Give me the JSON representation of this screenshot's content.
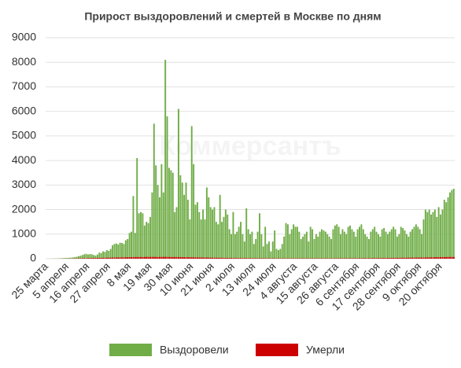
{
  "chart_data": {
    "type": "bar",
    "title": "Прирост выздоровлений и смертей в Москве по дням",
    "watermark": "Коммерсантъ",
    "categories": [
      "25 марта",
      null,
      null,
      null,
      null,
      null,
      null,
      null,
      null,
      null,
      null,
      "5 апреля",
      null,
      null,
      null,
      null,
      null,
      null,
      null,
      null,
      null,
      null,
      "16 апреля",
      null,
      null,
      null,
      null,
      null,
      null,
      null,
      null,
      null,
      null,
      "27 апреля",
      null,
      null,
      null,
      null,
      null,
      null,
      null,
      null,
      null,
      null,
      "8 мая",
      null,
      null,
      null,
      null,
      null,
      null,
      null,
      null,
      null,
      null,
      "19 мая",
      null,
      null,
      null,
      null,
      null,
      null,
      null,
      null,
      null,
      null,
      "30 мая",
      null,
      null,
      null,
      null,
      null,
      null,
      null,
      null,
      null,
      null,
      "10 июня",
      null,
      null,
      null,
      null,
      null,
      null,
      null,
      null,
      null,
      null,
      "21 июня",
      null,
      null,
      null,
      null,
      null,
      null,
      null,
      null,
      null,
      null,
      "2 июля",
      null,
      null,
      null,
      null,
      null,
      null,
      null,
      null,
      null,
      null,
      "13 июля",
      null,
      null,
      null,
      null,
      null,
      null,
      null,
      null,
      null,
      null,
      "24 июля",
      null,
      null,
      null,
      null,
      null,
      null,
      null,
      null,
      null,
      null,
      "4 августа",
      null,
      null,
      null,
      null,
      null,
      null,
      null,
      null,
      null,
      null,
      "15 августа",
      null,
      null,
      null,
      null,
      null,
      null,
      null,
      null,
      null,
      null,
      "26 августа",
      null,
      null,
      null,
      null,
      null,
      null,
      null,
      null,
      null,
      null,
      "6 сентября",
      null,
      null,
      null,
      null,
      null,
      null,
      null,
      null,
      null,
      null,
      "17 сентября",
      null,
      null,
      null,
      null,
      null,
      null,
      null,
      null,
      null,
      null,
      "28 сентября",
      null,
      null,
      null,
      null,
      null,
      null,
      null,
      null,
      null,
      null,
      "9 октября",
      null,
      null,
      null,
      null,
      null,
      null,
      null,
      null,
      null,
      null,
      "20 октября",
      null,
      null,
      null,
      null,
      null,
      null,
      null
    ],
    "series": [
      {
        "name": "Выздоровели",
        "color": "#70ad47",
        "values": [
          0,
          1,
          3,
          5,
          5,
          8,
          12,
          15,
          20,
          25,
          30,
          30,
          35,
          40,
          50,
          60,
          80,
          100,
          120,
          150,
          180,
          200,
          170,
          190,
          180,
          150,
          130,
          170,
          250,
          230,
          300,
          280,
          350,
          320,
          400,
          550,
          600,
          620,
          580,
          650,
          640,
          600,
          750,
          800,
          1050,
          1100,
          2550,
          1050,
          4100,
          1850,
          1900,
          1850,
          1350,
          1500,
          1450,
          1700,
          2700,
          5500,
          3800,
          3000,
          2500,
          3850,
          2700,
          8100,
          5800,
          3700,
          3600,
          3500,
          1900,
          2100,
          6100,
          3400,
          3100,
          2600,
          3100,
          2400,
          1600,
          5400,
          3850,
          2200,
          2300,
          1900,
          1600,
          2000,
          1600,
          2900,
          2500,
          2100,
          2000,
          2100,
          1500,
          1400,
          2600,
          1500,
          1700,
          2000,
          1800,
          1200,
          1000,
          1900,
          1000,
          1100,
          1300,
          1500,
          1000,
          700,
          2050,
          1200,
          1000,
          1100,
          600,
          800,
          1100,
          1850,
          1000,
          500,
          1300,
          600,
          700,
          300,
          700,
          1150,
          400,
          350,
          400,
          600,
          900,
          1450,
          1400,
          1000,
          1200,
          1400,
          1300,
          1300,
          1100,
          800,
          900,
          1000,
          1100,
          700,
          1300,
          1200,
          800,
          1000,
          900,
          1100,
          1200,
          1150,
          1100,
          1000,
          900,
          800,
          1200,
          1350,
          1400,
          1300,
          1000,
          1200,
          1100,
          1000,
          1300,
          1350,
          1200,
          1100,
          900,
          1200,
          1300,
          1400,
          1200,
          1000,
          900,
          800,
          1100,
          1200,
          1300,
          1100,
          1000,
          900,
          1200,
          1250,
          1100,
          1000,
          1100,
          1200,
          1300,
          1200,
          900,
          1000,
          1300,
          1250,
          1150,
          1000,
          900,
          1100,
          1200,
          1300,
          1400,
          1300,
          1200,
          1000,
          1600,
          2000,
          1900,
          2000,
          1800,
          1900,
          2000,
          1700,
          2100,
          1800,
          2000,
          2400,
          2300,
          2500,
          2700,
          2800,
          2850
        ]
      },
      {
        "name": "Умерли",
        "color": "#cc0000",
        "values": [
          0,
          0,
          0,
          1,
          1,
          1,
          2,
          2,
          2,
          3,
          3,
          5,
          5,
          6,
          8,
          10,
          12,
          14,
          16,
          18,
          18,
          20,
          22,
          24,
          26,
          28,
          30,
          30,
          32,
          34,
          36,
          38,
          40,
          42,
          44,
          46,
          48,
          50,
          52,
          50,
          54,
          56,
          58,
          60,
          62,
          64,
          66,
          66,
          68,
          70,
          68,
          66,
          70,
          72,
          74,
          70,
          72,
          74,
          70,
          68,
          70,
          72,
          74,
          76,
          72,
          70,
          68,
          66,
          70,
          68,
          66,
          64,
          62,
          60,
          62,
          60,
          58,
          56,
          58,
          54,
          52,
          50,
          52,
          48,
          46,
          48,
          44,
          42,
          40,
          42,
          38,
          36,
          38,
          34,
          32,
          30,
          32,
          30,
          28,
          30,
          26,
          24,
          26,
          24,
          22,
          24,
          22,
          20,
          22,
          20,
          18,
          20,
          20,
          18,
          20,
          18,
          16,
          18,
          16,
          16,
          18,
          16,
          14,
          16,
          14,
          16,
          14,
          16,
          14,
          16,
          14,
          14,
          16,
          14,
          16,
          14,
          16,
          14,
          14,
          16,
          14,
          16,
          14,
          16,
          14,
          14,
          16,
          14,
          16,
          14,
          16,
          14,
          14,
          16,
          16,
          18,
          16,
          18,
          16,
          18,
          18,
          18,
          20,
          18,
          20,
          18,
          20,
          20,
          20,
          22,
          20,
          22,
          22,
          24,
          24,
          26,
          24,
          26,
          28,
          28,
          30,
          30,
          32,
          30,
          32,
          34,
          36,
          34,
          36,
          38,
          40,
          38,
          40,
          42,
          44,
          42,
          44,
          46,
          48,
          46,
          48,
          50,
          52,
          54,
          56,
          58,
          60,
          62,
          60,
          64,
          64,
          66,
          68,
          70,
          68,
          72,
          70
        ]
      }
    ],
    "ylim": [
      0,
      9000
    ],
    "yticks": [
      0,
      1000,
      2000,
      3000,
      4000,
      5000,
      6000,
      7000,
      8000,
      9000
    ],
    "grid": true,
    "legend": "bottom"
  }
}
